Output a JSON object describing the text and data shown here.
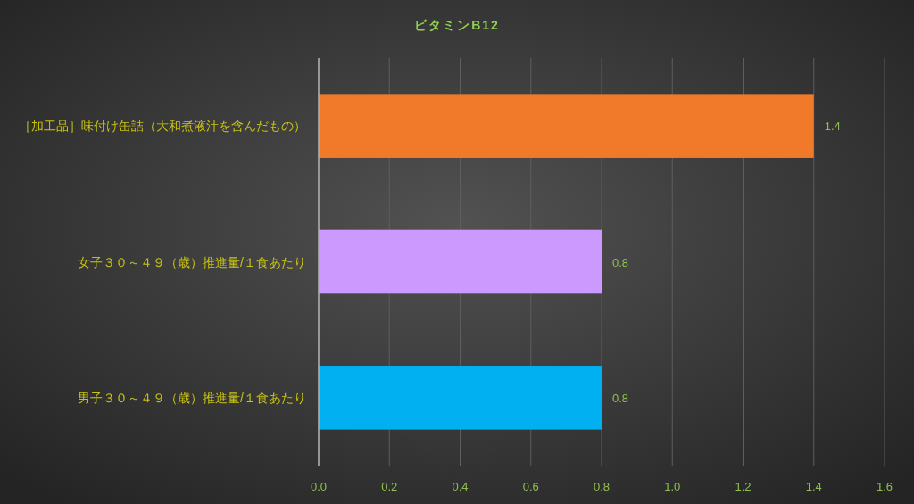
{
  "chart_data": {
    "type": "bar",
    "orientation": "horizontal",
    "title": "ビタミンB12",
    "categories": [
      "［加工品］味付け缶詰（大和煮液汁を含んだもの）",
      "女子３０～４９（歳）推進量/１食あたり",
      "男子３０～４９（歳）推進量/１食あたり"
    ],
    "values": [
      1.4,
      0.8,
      0.8
    ],
    "colors": [
      "#f07a2a",
      "#cc99ff",
      "#00b0f0"
    ],
    "xlim": [
      0,
      1.6
    ],
    "xticks": [
      {
        "value": 0,
        "label": "0.0"
      },
      0.2,
      0.4,
      0.6,
      0.8,
      {
        "value": 1,
        "label": "1.0"
      },
      1.2,
      1.4,
      1.6
    ],
    "grid": "x",
    "data_labels": true
  }
}
